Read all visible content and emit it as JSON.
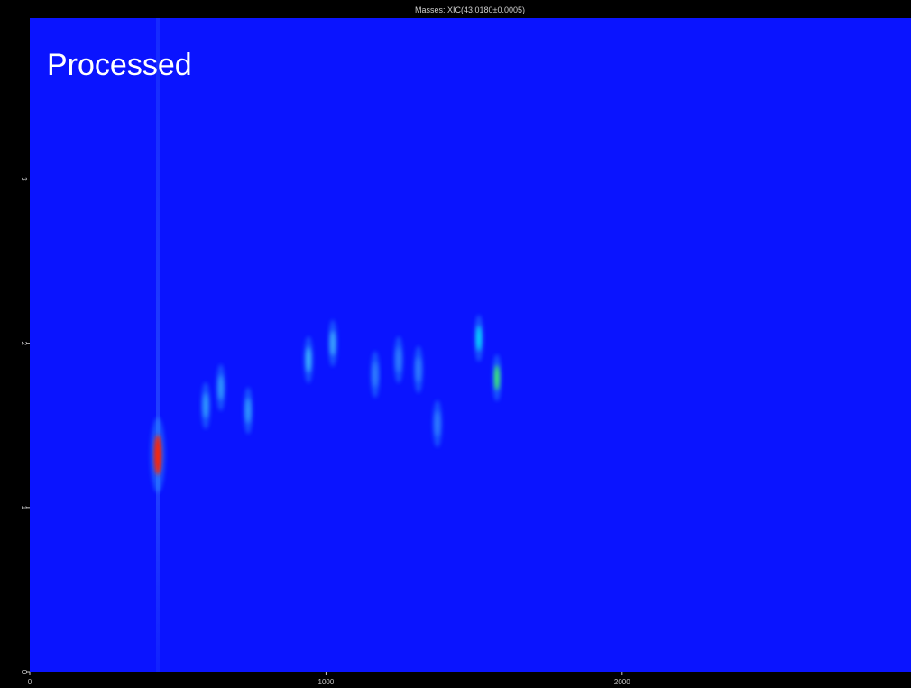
{
  "chart_data": {
    "type": "scatter",
    "title": "Masses: XIC(43.0180±0.0005)",
    "annotation": "Processed",
    "x": [
      432,
      1516,
      1577,
      941,
      1023,
      645,
      594,
      737,
      1245,
      1312,
      1376,
      1166
    ],
    "values": [
      1.32,
      2.03,
      1.79,
      1.9,
      2.0,
      1.73,
      1.62,
      1.59,
      1.9,
      1.84,
      1.51,
      1.81
    ],
    "colors": [
      "#ff2000",
      "#00e8ff",
      "#40ff60",
      "#40c0ff",
      "#40b0ff",
      "#30a0ff",
      "#30a0ff",
      "#30a0ff",
      "#3080ff",
      "#3080ff",
      "#3080ff",
      "#3080ff"
    ],
    "background": "#0a14ff",
    "xlim": [
      0,
      2975
    ],
    "ylim": [
      0,
      3.98
    ],
    "xticks": [
      0,
      1000,
      2000
    ],
    "yticks": [
      0,
      1,
      2,
      3
    ]
  }
}
